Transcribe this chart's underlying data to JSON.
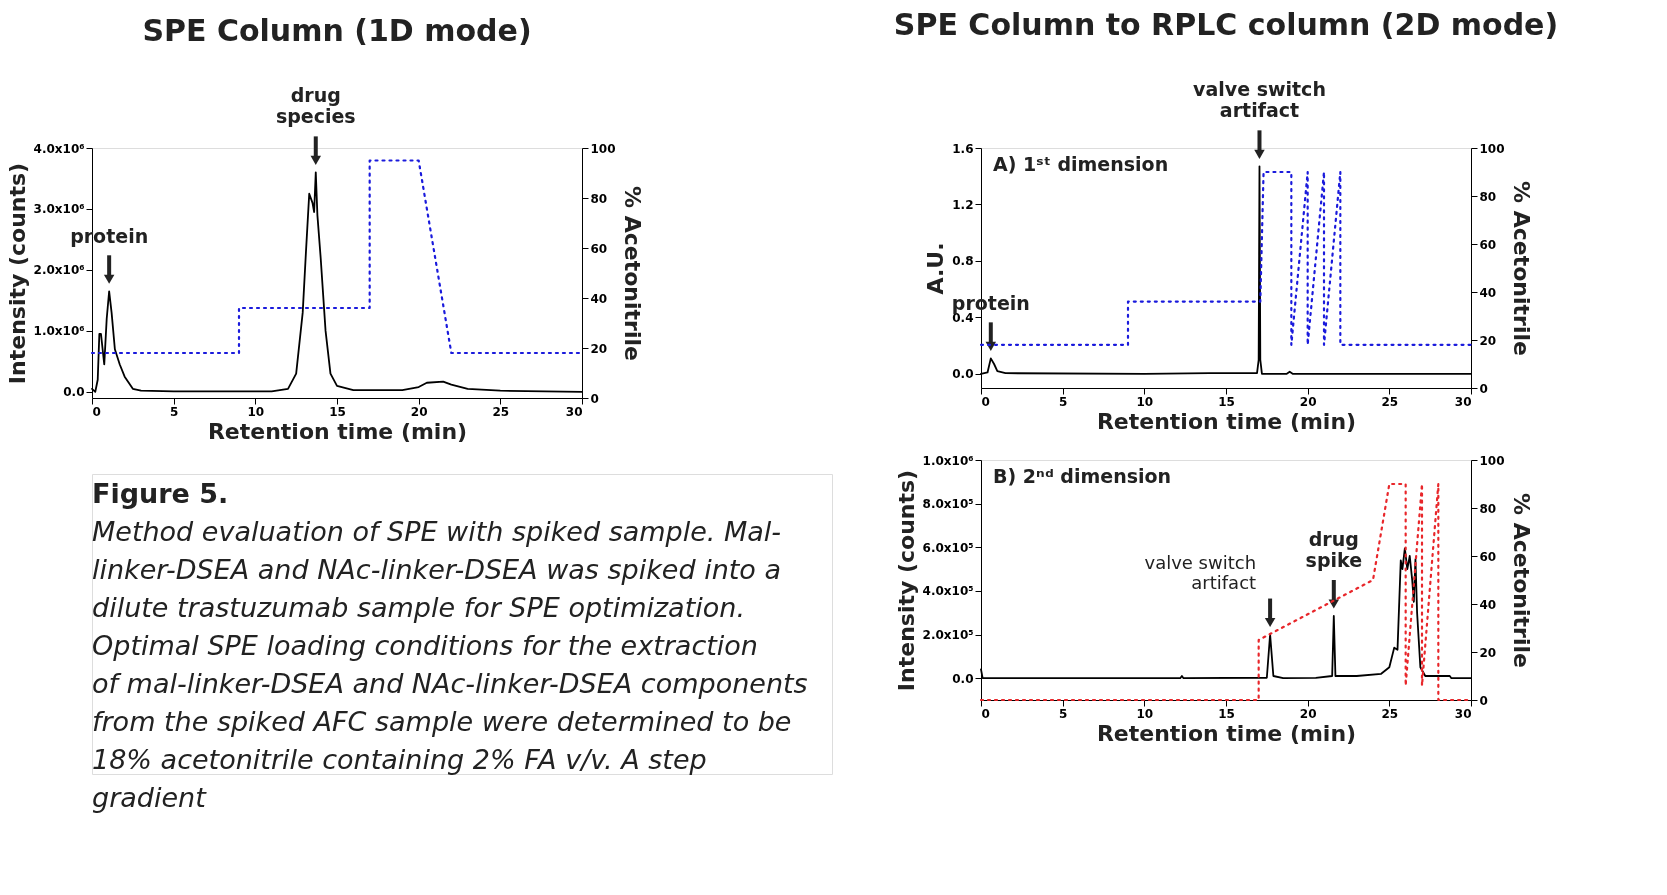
{
  "chart_data": [
    {
      "type": "line",
      "title": "SPE Column (1D mode)",
      "xlabel": "Retention time (min)",
      "ylabel": "Intensity (counts)",
      "y2label": "% Acetonitrile",
      "xlim": [
        0,
        30
      ],
      "xticks": [
        0,
        5,
        10,
        15,
        20,
        25,
        30
      ],
      "ylim": [
        -100000,
        4000000
      ],
      "yticks": [
        {
          "value": 0,
          "label": "0.0"
        },
        {
          "value": 1000000,
          "label": "1.0x10⁶"
        },
        {
          "value": 2000000,
          "label": "2.0x10⁶"
        },
        {
          "value": 3000000,
          "label": "3.0x10⁶"
        },
        {
          "value": 4000000,
          "label": "4.0x10⁶"
        }
      ],
      "y2lim": [
        0,
        100
      ],
      "y2ticks": [
        0,
        20,
        40,
        60,
        80,
        100
      ],
      "grid": false,
      "series": [
        {
          "color": "#000000",
          "line_style": "solid",
          "x": [
            0,
            0.2,
            0.35,
            0.45,
            0.55,
            0.75,
            0.9,
            1.05,
            1.2,
            1.4,
            1.7,
            2.0,
            2.5,
            3,
            5,
            8,
            11,
            12,
            12.5,
            12.9,
            13.1,
            13.3,
            13.5,
            13.6,
            13.7,
            13.8,
            14.0,
            14.3,
            14.6,
            15.0,
            16,
            19,
            20,
            20.5,
            21.5,
            22,
            23,
            25,
            30
          ],
          "values": [
            50000,
            0,
            200000,
            950000,
            950000,
            450000,
            1200000,
            1650000,
            1300000,
            700000,
            450000,
            250000,
            50000,
            20000,
            10000,
            10000,
            10000,
            50000,
            300000,
            1300000,
            2300000,
            3250000,
            3100000,
            2950000,
            3600000,
            2900000,
            2200000,
            1000000,
            300000,
            100000,
            30000,
            30000,
            80000,
            150000,
            170000,
            120000,
            50000,
            20000,
            0
          ]
        },
        {
          "color": "#1a1adc",
          "axis": "y2",
          "line_style": "dotted",
          "x": [
            0,
            9,
            9,
            17,
            17,
            20,
            22,
            30
          ],
          "values": [
            18,
            18,
            36,
            36,
            95,
            95,
            18,
            18
          ]
        }
      ],
      "annotations": [
        {
          "text": "protein",
          "x": 1.05,
          "y": 1650000
        },
        {
          "text": "drug\nspecies",
          "x": 13.7,
          "y": 3600000
        }
      ]
    },
    {
      "type": "other",
      "annotations": [
        "Figure 5.",
        "Method evaluation of SPE with spiked sample. Mal-linker-DSEA and NAc-linker-DSEA was spiked into a dilute trastuzumab sample for SPE optimization. Optimal SPE loading conditions for the extraction of mal-linker-DSEA and NAc-linker-DSEA components from the spiked AFC sample were determined to be 18% acetonitrile containing 2% FA v/v. A step gradient"
      ]
    },
    {
      "type": "line",
      "title": "SPE Column to RPLC column (2D mode)",
      "xlabel": "Retention time (min)",
      "ylabel": "A.U.",
      "y2label": "% Acetonitrile",
      "xlim": [
        0,
        30
      ],
      "xticks": [
        0,
        5,
        10,
        15,
        20,
        25,
        30
      ],
      "ylim": [
        -0.1,
        1.6
      ],
      "yticks": [
        {
          "value": 0,
          "label": "0.0"
        },
        0.4,
        0.8,
        1.2,
        1.6
      ],
      "y2lim": [
        0,
        100
      ],
      "y2ticks": [
        0,
        20,
        40,
        60,
        80,
        100
      ],
      "grid": false,
      "series": [
        {
          "color": "#000000",
          "line_style": "solid",
          "x": [
            0,
            0.4,
            0.6,
            0.8,
            1.0,
            1.5,
            10,
            14,
            16.9,
            17.0,
            17.05,
            17.1,
            17.2,
            18.7,
            18.9,
            19.1,
            30
          ],
          "values": [
            0,
            0.01,
            0.11,
            0.07,
            0.02,
            0.005,
            0,
            0.005,
            0.005,
            0.1,
            1.47,
            0.1,
            0,
            0,
            0.015,
            0,
            0
          ]
        },
        {
          "color": "#1a1adc",
          "axis": "y2",
          "line_style": "dotted",
          "x": [
            0,
            9,
            9,
            17.1,
            17.3,
            19,
            19,
            20,
            20,
            21,
            21,
            22,
            22,
            30
          ],
          "values": [
            18,
            18,
            36,
            36,
            90,
            90,
            18,
            90,
            18,
            90,
            18,
            90,
            18,
            18
          ]
        }
      ],
      "annotations": [
        "A) 1ˢᵗ dimension",
        {
          "text": "protein",
          "x": 0.6,
          "y": 0.11
        },
        {
          "text": "valve switch\nartifact",
          "x": 17.05,
          "y": 1.47
        }
      ]
    },
    {
      "type": "line",
      "xlabel": "Retention time (min)",
      "ylabel": "Intensity (counts)",
      "y2label": "% Acetonitrile",
      "xlim": [
        0,
        30
      ],
      "xticks": [
        0,
        5,
        10,
        15,
        20,
        25,
        30
      ],
      "ylim": [
        -100000,
        1000000
      ],
      "yticks": [
        {
          "value": 0,
          "label": "0.0"
        },
        {
          "value": 200000,
          "label": "2.0x10⁵"
        },
        {
          "value": 400000,
          "label": "4.0x10⁵"
        },
        {
          "value": 600000,
          "label": "6.0x10⁵"
        },
        {
          "value": 800000,
          "label": "8.0x10⁵"
        },
        {
          "value": 1000000,
          "label": "1.0x10⁶"
        }
      ],
      "y2lim": [
        0,
        100
      ],
      "y2ticks": [
        0,
        20,
        40,
        60,
        80,
        100
      ],
      "grid": false,
      "series": [
        {
          "color": "#000000",
          "line_style": "solid",
          "x": [
            0,
            0.1,
            12.2,
            12.3,
            12.4,
            17.5,
            17.7,
            17.9,
            18.5,
            20.5,
            21.5,
            21.6,
            21.7,
            23,
            24.5,
            25,
            25.3,
            25.5,
            25.7,
            25.8,
            25.95,
            26.1,
            26.25,
            26.4,
            26.5,
            26.6,
            26.7,
            26.9,
            27.2,
            28.7,
            28.8,
            30
          ],
          "values": [
            40000,
            0,
            0,
            10000,
            0,
            2000,
            200000,
            10000,
            0,
            1000,
            10000,
            285000,
            10000,
            10000,
            20000,
            50000,
            140000,
            130000,
            540000,
            500000,
            595000,
            500000,
            560000,
            450000,
            350000,
            545000,
            300000,
            50000,
            10000,
            10000,
            0,
            0
          ]
        },
        {
          "color": "#e8262a",
          "axis": "y2",
          "line_style": "dotted",
          "x": [
            0,
            17,
            17,
            24,
            25,
            26,
            26,
            27,
            27,
            28,
            28,
            30
          ],
          "values": [
            0,
            0,
            25,
            50,
            90,
            90,
            6,
            90,
            6,
            90,
            0,
            0
          ]
        }
      ],
      "annotations": [
        "B) 2ⁿᵈ dimension",
        {
          "text": "valve switch\nartifact",
          "x": 17.7,
          "y": 200000
        },
        {
          "text": "drug\nspike",
          "x": 21.6,
          "y": 285000
        }
      ]
    }
  ]
}
